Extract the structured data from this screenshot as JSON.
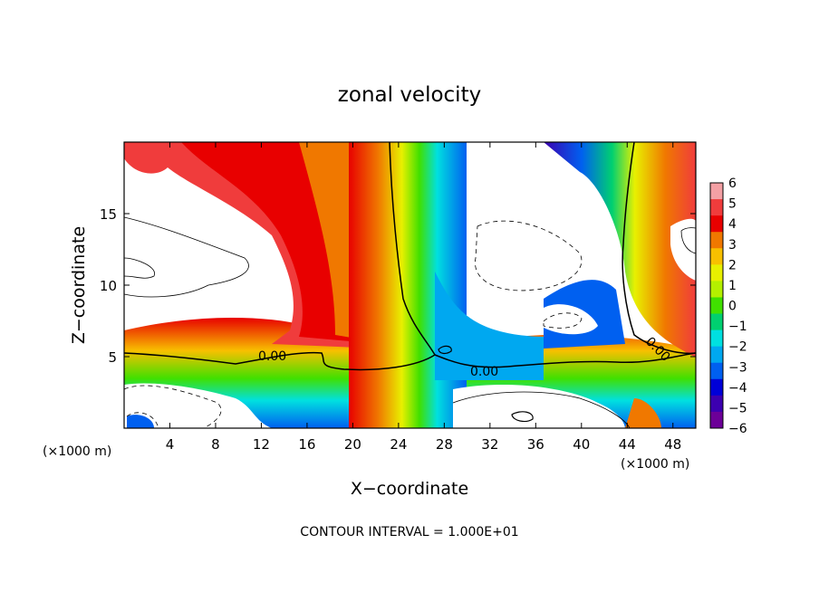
{
  "chart_data": {
    "type": "heatmap",
    "title": "zonal velocity",
    "xlabel": "X−coordinate",
    "ylabel": "Z−coordinate",
    "x_unit_left": "(×1000 m)",
    "x_unit_right": "(×1000 m)",
    "xlim": [
      0,
      50
    ],
    "ylim": [
      0,
      20
    ],
    "x_ticks": [
      "4",
      "8",
      "12",
      "16",
      "20",
      "24",
      "28",
      "32",
      "36",
      "40",
      "44",
      "48"
    ],
    "y_ticks": [
      "5",
      "10",
      "15"
    ],
    "colorbar": {
      "range": [
        -6,
        6
      ],
      "labels": [
        "6",
        "5",
        "4",
        "3",
        "2",
        "1",
        "0",
        "−1",
        "−2",
        "−3",
        "−4",
        "−5",
        "−6"
      ],
      "colors": [
        "#f4a0a4",
        "#f03c3c",
        "#e80000",
        "#f07800",
        "#f8c000",
        "#e8f000",
        "#b4f000",
        "#40e000",
        "#00d070",
        "#00e0e0",
        "#00a8f0",
        "#0060f0",
        "#0000d8",
        "#3c00b0",
        "#6c0098"
      ]
    },
    "contour_labels": [
      "0.00",
      "0.00",
      "0.00"
    ],
    "footer": "CONTOUR INTERVAL = 1.000E+01"
  }
}
